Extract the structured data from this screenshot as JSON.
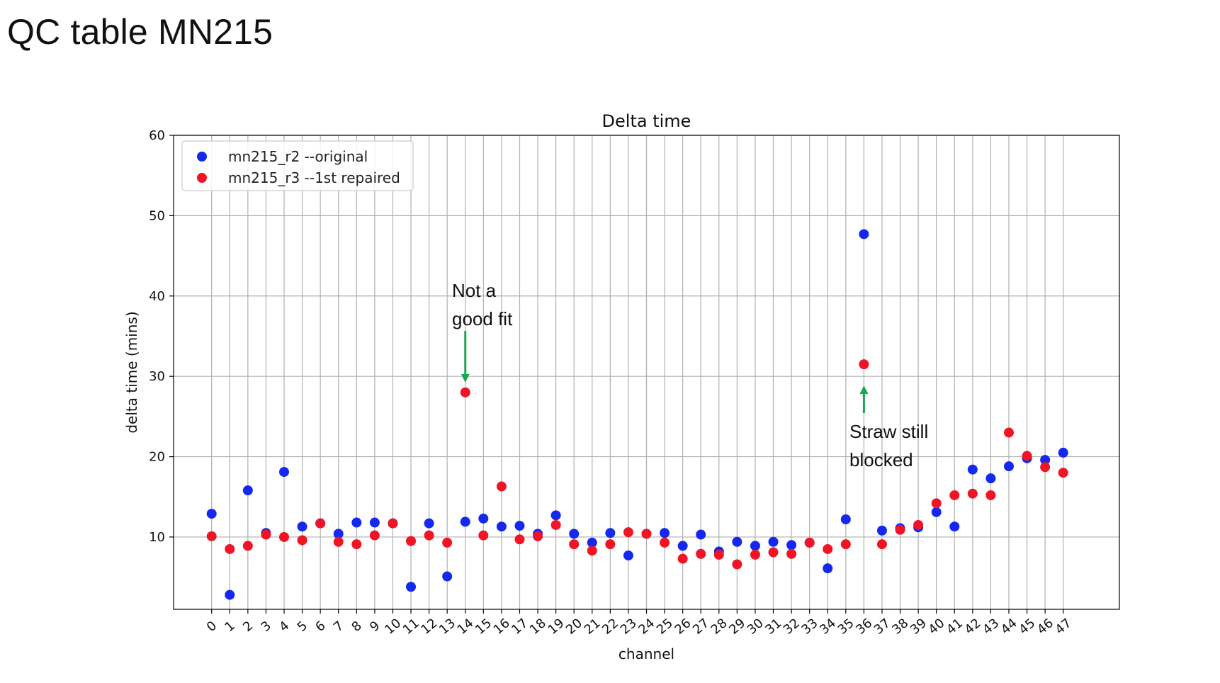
{
  "page_title": "QC table MN215",
  "chart_data": {
    "type": "scatter",
    "title": "Delta time",
    "xlabel": "channel",
    "ylabel": "delta time (mins)",
    "ylim": [
      1,
      60
    ],
    "yticks": [
      10,
      20,
      30,
      40,
      50,
      60
    ],
    "grid": true,
    "legend_position": "top-left",
    "x": [
      0,
      1,
      2,
      3,
      4,
      5,
      6,
      7,
      8,
      9,
      10,
      11,
      12,
      13,
      14,
      15,
      16,
      17,
      18,
      19,
      20,
      21,
      22,
      23,
      24,
      25,
      26,
      27,
      28,
      29,
      30,
      31,
      32,
      33,
      34,
      35,
      36,
      37,
      38,
      39,
      40,
      41,
      42,
      43,
      44,
      45,
      46,
      47
    ],
    "series": [
      {
        "name": "mn215_r2 --original",
        "color": "#1428f0",
        "values": [
          12.9,
          2.8,
          15.8,
          10.5,
          18.1,
          11.3,
          11.7,
          10.4,
          11.8,
          11.8,
          11.7,
          3.8,
          11.7,
          5.1,
          11.9,
          12.3,
          11.3,
          11.4,
          10.4,
          12.7,
          10.4,
          9.3,
          10.5,
          7.7,
          10.4,
          10.5,
          8.9,
          10.3,
          8.2,
          9.4,
          8.9,
          9.4,
          9.0,
          9.3,
          6.1,
          12.2,
          47.7,
          10.8,
          11.1,
          11.2,
          13.1,
          11.3,
          18.4,
          17.3,
          18.8,
          19.8,
          19.6,
          20.5
        ]
      },
      {
        "name": "mn215_r3 --1st repaired",
        "color": "#f01424",
        "values": [
          10.1,
          8.5,
          8.9,
          10.3,
          10.0,
          9.6,
          11.7,
          9.4,
          9.1,
          10.2,
          11.7,
          9.5,
          10.2,
          9.3,
          28.0,
          10.2,
          16.3,
          9.7,
          10.1,
          11.5,
          9.1,
          8.3,
          9.1,
          10.6,
          10.4,
          9.3,
          7.3,
          7.9,
          7.8,
          6.6,
          7.8,
          8.1,
          7.9,
          9.3,
          8.5,
          9.1,
          31.5,
          9.1,
          10.9,
          11.5,
          14.2,
          15.2,
          15.4,
          15.2,
          23.0,
          20.1,
          18.7,
          18.0
        ]
      }
    ],
    "annotations": [
      {
        "text_lines": [
          "Not a",
          "good fit"
        ],
        "channel": 14,
        "points_to": 28.0,
        "arrow_color": "#1aa551"
      },
      {
        "text_lines": [
          "Straw still",
          "blocked"
        ],
        "channel": 36,
        "points_to": 31.5,
        "arrow_color": "#1aa551"
      }
    ]
  }
}
